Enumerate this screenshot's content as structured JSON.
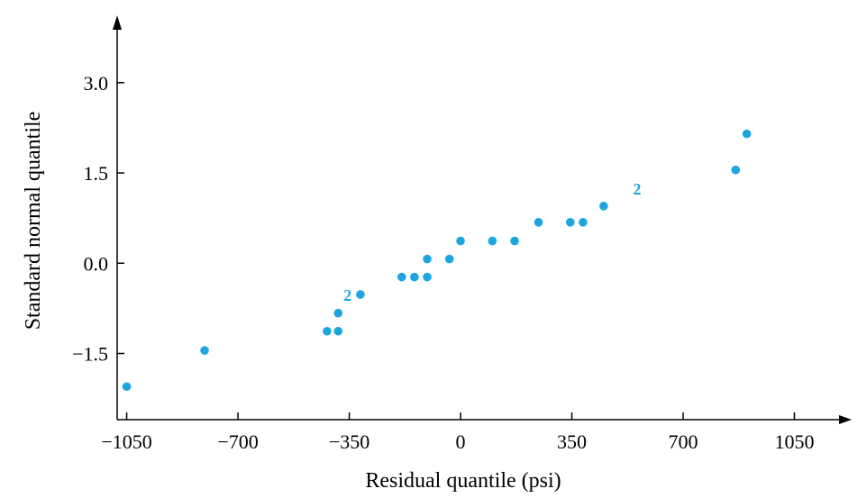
{
  "chart_data": {
    "type": "scatter",
    "xlabel": "Residual quantile (psi)",
    "ylabel": "Standard normal quantile",
    "xlim": [
      -1080,
      1230
    ],
    "ylim": [
      -2.6,
      4.0
    ],
    "xticks": [
      -1050,
      -700,
      -350,
      0,
      350,
      700,
      1050
    ],
    "xtick_labels": [
      "−1050",
      "−700",
      "−350",
      "0",
      "350",
      "700",
      "1050"
    ],
    "yticks": [
      -1.5,
      0.0,
      1.5,
      3.0
    ],
    "ytick_labels": [
      "−1.5",
      "0.0",
      "1.5",
      "3.0"
    ],
    "grid": false,
    "marker_color": "#1ba6e0",
    "points": [
      {
        "x": -1050,
        "y": -2.05
      },
      {
        "x": -805,
        "y": -1.45
      },
      {
        "x": -420,
        "y": -1.13
      },
      {
        "x": -385,
        "y": -1.13
      },
      {
        "x": -385,
        "y": -0.83
      },
      {
        "x": -315,
        "y": -0.52
      },
      {
        "x": -185,
        "y": -0.23
      },
      {
        "x": -145,
        "y": -0.23
      },
      {
        "x": -105,
        "y": -0.23
      },
      {
        "x": -105,
        "y": 0.07
      },
      {
        "x": -35,
        "y": 0.07
      },
      {
        "x": 0,
        "y": 0.37
      },
      {
        "x": 100,
        "y": 0.37
      },
      {
        "x": 170,
        "y": 0.37
      },
      {
        "x": 245,
        "y": 0.68
      },
      {
        "x": 345,
        "y": 0.68
      },
      {
        "x": 385,
        "y": 0.68
      },
      {
        "x": 450,
        "y": 0.95
      },
      {
        "x": 865,
        "y": 1.55
      },
      {
        "x": 900,
        "y": 2.15
      }
    ],
    "annotations": [
      {
        "text": "2",
        "x": -355,
        "y": -0.52
      },
      {
        "text": "2",
        "x": 555,
        "y": 1.25
      }
    ]
  }
}
